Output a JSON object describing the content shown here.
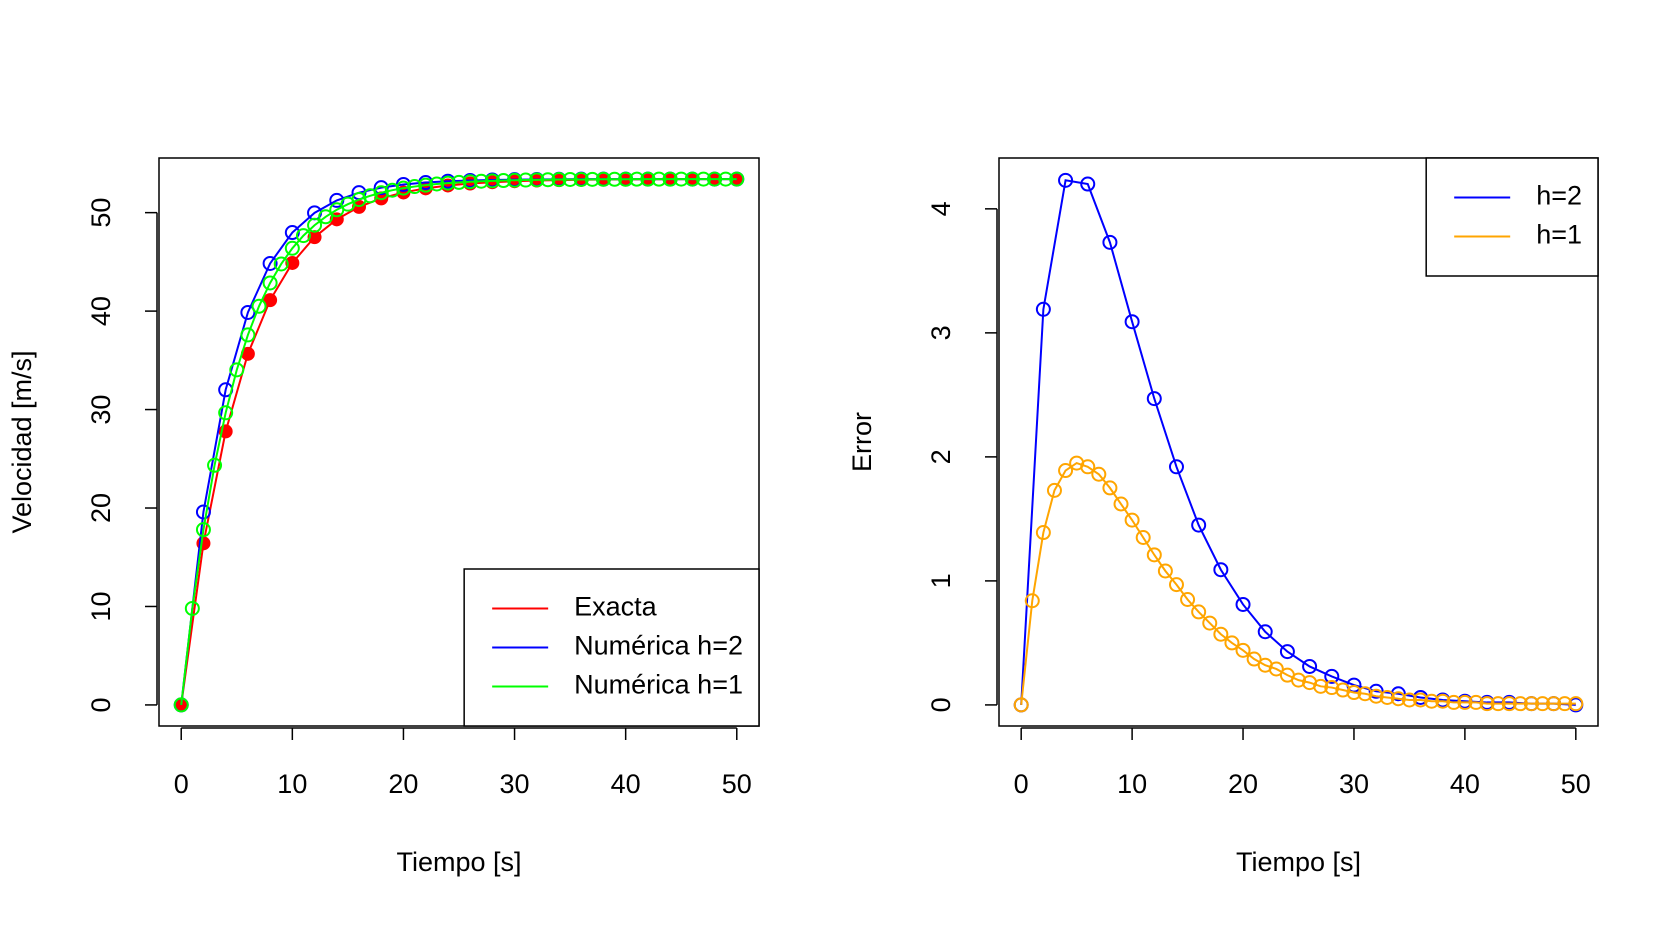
{
  "chart_data": [
    {
      "type": "line",
      "xlabel": "Tiempo [s]",
      "ylabel": "Velocidad [m/s]",
      "xlim": [
        -2,
        52
      ],
      "xticks": [
        0,
        10,
        20,
        30,
        40,
        50
      ],
      "ylim": [
        -2.14,
        55.55
      ],
      "yticks": [
        0,
        10,
        20,
        30,
        40,
        50
      ],
      "legend": "bottomright",
      "series": [
        {
          "name": "Exacta",
          "color": "#ff0000",
          "marker": "filled",
          "x": [
            0,
            2,
            4,
            6,
            8,
            10,
            12,
            14,
            16,
            18,
            20,
            22,
            24,
            26,
            28,
            30,
            32,
            34,
            36,
            38,
            40,
            42,
            44,
            46,
            48,
            50
          ],
          "values": [
            0,
            16.41,
            27.78,
            35.66,
            41.11,
            44.89,
            47.51,
            49.32,
            50.58,
            51.45,
            52.05,
            52.47,
            52.76,
            52.96,
            53.09,
            53.19,
            53.26,
            53.3,
            53.34,
            53.36,
            53.38,
            53.39,
            53.39,
            53.4,
            53.4,
            53.41
          ]
        },
        {
          "name": "Numérica h=2",
          "color": "#0000ff",
          "marker": "open",
          "x": [
            0,
            2,
            4,
            6,
            8,
            10,
            12,
            14,
            16,
            18,
            20,
            22,
            24,
            26,
            28,
            30,
            32,
            34,
            36,
            38,
            40,
            42,
            44,
            46,
            48,
            50
          ],
          "values": [
            0,
            19.6,
            32.01,
            39.86,
            44.84,
            47.98,
            49.98,
            51.24,
            52.03,
            52.54,
            52.86,
            53.06,
            53.19,
            53.27,
            53.32,
            53.35,
            53.37,
            53.39,
            53.4,
            53.4,
            53.41,
            53.41,
            53.41,
            53.41,
            53.41,
            53.41
          ]
        },
        {
          "name": "Numérica h=1",
          "color": "#00ff00",
          "marker": "open",
          "x": [
            0,
            1,
            2,
            3,
            4,
            5,
            6,
            7,
            8,
            9,
            10,
            11,
            12,
            13,
            14,
            15,
            16,
            17,
            18,
            19,
            20,
            21,
            22,
            23,
            24,
            25,
            26,
            27,
            28,
            29,
            30,
            31,
            32,
            33,
            34,
            35,
            36,
            37,
            38,
            39,
            40,
            41,
            42,
            43,
            44,
            45,
            46,
            47,
            48,
            49,
            50
          ],
          "values": [
            0,
            9.8,
            17.8,
            24.34,
            29.67,
            34.03,
            37.58,
            40.49,
            42.86,
            44.79,
            46.38,
            47.67,
            48.72,
            49.58,
            50.29,
            50.86,
            51.33,
            51.71,
            52.02,
            52.28,
            52.49,
            52.65,
            52.79,
            52.91,
            53.0,
            53.07,
            53.14,
            53.19,
            53.23,
            53.26,
            53.29,
            53.31,
            53.33,
            53.34,
            53.36,
            53.37,
            53.37,
            53.38,
            53.39,
            53.39,
            53.39,
            53.4,
            53.4,
            53.4,
            53.4,
            53.41,
            53.41,
            53.41,
            53.41,
            53.41,
            53.41
          ]
        }
      ]
    },
    {
      "type": "line",
      "xlabel": "Tiempo [s]",
      "ylabel": "Error",
      "xlim": [
        -2,
        52
      ],
      "xticks": [
        0,
        10,
        20,
        30,
        40,
        50
      ],
      "ylim": [
        -0.17,
        4.41
      ],
      "yticks": [
        0,
        1,
        2,
        3,
        4
      ],
      "legend": "topright",
      "series": [
        {
          "name": "h=2",
          "color": "#0000ff",
          "marker": "open",
          "x": [
            0,
            2,
            4,
            6,
            8,
            10,
            12,
            14,
            16,
            18,
            20,
            22,
            24,
            26,
            28,
            30,
            32,
            34,
            36,
            38,
            40,
            42,
            44,
            46,
            48,
            50
          ],
          "values": [
            0,
            3.19,
            4.23,
            4.2,
            3.73,
            3.09,
            2.47,
            1.92,
            1.45,
            1.09,
            0.81,
            0.59,
            0.43,
            0.31,
            0.23,
            0.16,
            0.11,
            0.09,
            0.06,
            0.04,
            0.03,
            0.02,
            0.02,
            0.01,
            0.01,
            0.0
          ]
        },
        {
          "name": "h=1",
          "color": "#ffa500",
          "marker": "open",
          "x": [
            0,
            1,
            2,
            3,
            4,
            5,
            6,
            7,
            8,
            9,
            10,
            11,
            12,
            13,
            14,
            15,
            16,
            17,
            18,
            19,
            20,
            21,
            22,
            23,
            24,
            25,
            26,
            27,
            28,
            29,
            30,
            31,
            32,
            33,
            34,
            35,
            36,
            37,
            38,
            39,
            40,
            41,
            42,
            43,
            44,
            45,
            46,
            47,
            48,
            49,
            50
          ],
          "values": [
            0,
            0.84,
            1.39,
            1.73,
            1.89,
            1.95,
            1.92,
            1.86,
            1.75,
            1.62,
            1.49,
            1.35,
            1.21,
            1.08,
            0.97,
            0.85,
            0.75,
            0.66,
            0.57,
            0.5,
            0.44,
            0.37,
            0.32,
            0.29,
            0.24,
            0.2,
            0.18,
            0.15,
            0.14,
            0.12,
            0.1,
            0.09,
            0.07,
            0.06,
            0.05,
            0.04,
            0.04,
            0.03,
            0.03,
            0.02,
            0.02,
            0.02,
            0.01,
            0.01,
            0.01,
            0.01,
            0.01,
            0.01,
            0.01,
            0.01,
            0.01
          ]
        }
      ]
    }
  ]
}
